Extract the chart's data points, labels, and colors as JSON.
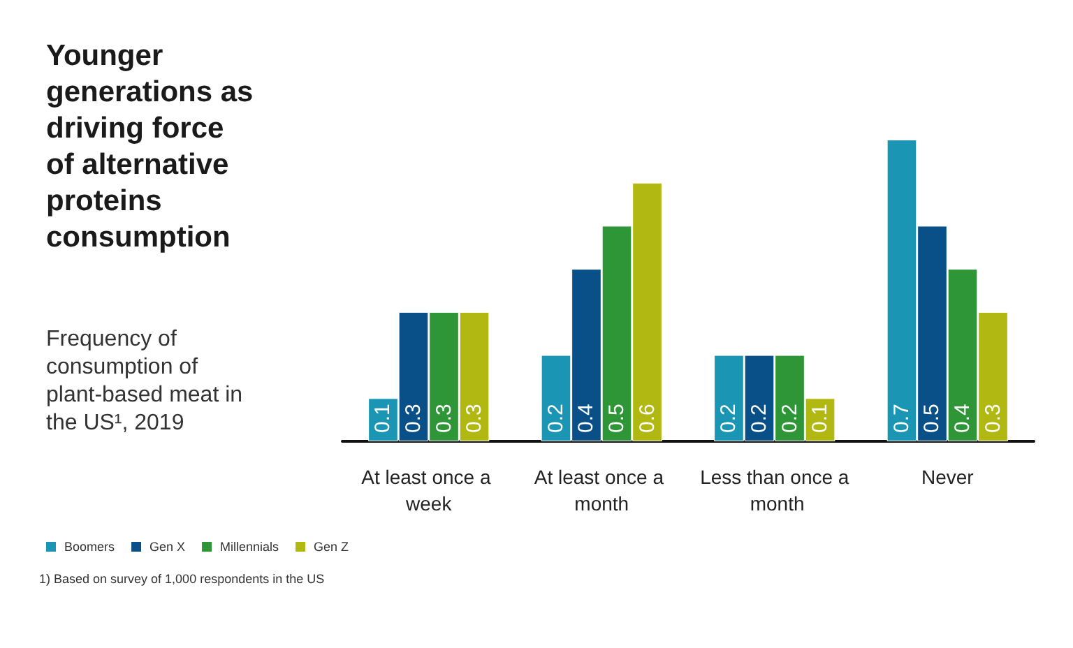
{
  "chart_data": {
    "type": "bar",
    "title": "Younger generations as driving force of alternative proteins consumption",
    "subtitle": "Frequency of consumption of plant-based meat in the US¹, 2019",
    "categories": [
      "At least once a week",
      "At least once a month",
      "Less than once a month",
      "Never"
    ],
    "series": [
      {
        "name": "Boomers",
        "color": "#1a96b4",
        "values": [
          0.1,
          0.2,
          0.2,
          0.7
        ]
      },
      {
        "name": "Gen X",
        "color": "#0a5088",
        "values": [
          0.3,
          0.4,
          0.2,
          0.5
        ]
      },
      {
        "name": "Millennials",
        "color": "#2e9637",
        "values": [
          0.3,
          0.5,
          0.2,
          0.4
        ]
      },
      {
        "name": "Gen Z",
        "color": "#b2b812",
        "values": [
          0.3,
          0.6,
          0.1,
          0.3
        ]
      }
    ],
    "relative": false,
    "ylim": [
      0,
      0.7
    ],
    "data_labels": true,
    "grid": false,
    "legend": "bottom left",
    "annotations": [
      "1) Based on survey of 1,000 respondents in the US"
    ]
  }
}
